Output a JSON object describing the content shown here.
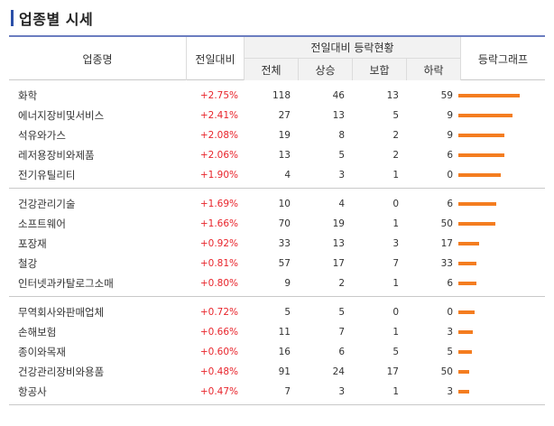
{
  "title": "업종별 시세",
  "header": {
    "name": "업종명",
    "prev": "전일대비",
    "group": "전일대비 등락현황",
    "total": "전체",
    "up": "상승",
    "flat": "보합",
    "down": "하락",
    "graph": "등락그래프"
  },
  "colors": {
    "accent": "#2b4fa8",
    "up_rate": "#e8242b",
    "bar": "#f47d20"
  },
  "groups": [
    {
      "rows": [
        {
          "name": "화학",
          "rate": "+2.75%",
          "total": "118",
          "up": "46",
          "flat": "13",
          "down": "59",
          "bar": 2.75
        },
        {
          "name": "에너지장비및서비스",
          "rate": "+2.41%",
          "total": "27",
          "up": "13",
          "flat": "5",
          "down": "9",
          "bar": 2.41
        },
        {
          "name": "석유와가스",
          "rate": "+2.08%",
          "total": "19",
          "up": "8",
          "flat": "2",
          "down": "9",
          "bar": 2.08
        },
        {
          "name": "레저용장비와제품",
          "rate": "+2.06%",
          "total": "13",
          "up": "5",
          "flat": "2",
          "down": "6",
          "bar": 2.06
        },
        {
          "name": "전기유틸리티",
          "rate": "+1.90%",
          "total": "4",
          "up": "3",
          "flat": "1",
          "down": "0",
          "bar": 1.9
        }
      ]
    },
    {
      "rows": [
        {
          "name": "건강관리기술",
          "rate": "+1.69%",
          "total": "10",
          "up": "4",
          "flat": "0",
          "down": "6",
          "bar": 1.69
        },
        {
          "name": "소프트웨어",
          "rate": "+1.66%",
          "total": "70",
          "up": "19",
          "flat": "1",
          "down": "50",
          "bar": 1.66
        },
        {
          "name": "포장재",
          "rate": "+0.92%",
          "total": "33",
          "up": "13",
          "flat": "3",
          "down": "17",
          "bar": 0.92
        },
        {
          "name": "철강",
          "rate": "+0.81%",
          "total": "57",
          "up": "17",
          "flat": "7",
          "down": "33",
          "bar": 0.81
        },
        {
          "name": "인터넷과카탈로그소매",
          "rate": "+0.80%",
          "total": "9",
          "up": "2",
          "flat": "1",
          "down": "6",
          "bar": 0.8
        }
      ]
    },
    {
      "rows": [
        {
          "name": "무역회사와판매업체",
          "rate": "+0.72%",
          "total": "5",
          "up": "5",
          "flat": "0",
          "down": "0",
          "bar": 0.72
        },
        {
          "name": "손해보험",
          "rate": "+0.66%",
          "total": "11",
          "up": "7",
          "flat": "1",
          "down": "3",
          "bar": 0.66
        },
        {
          "name": "종이와목재",
          "rate": "+0.60%",
          "total": "16",
          "up": "6",
          "flat": "5",
          "down": "5",
          "bar": 0.6
        },
        {
          "name": "건강관리장비와용품",
          "rate": "+0.48%",
          "total": "91",
          "up": "24",
          "flat": "17",
          "down": "50",
          "bar": 0.48
        },
        {
          "name": "항공사",
          "rate": "+0.47%",
          "total": "7",
          "up": "3",
          "flat": "1",
          "down": "3",
          "bar": 0.47
        }
      ]
    }
  ]
}
